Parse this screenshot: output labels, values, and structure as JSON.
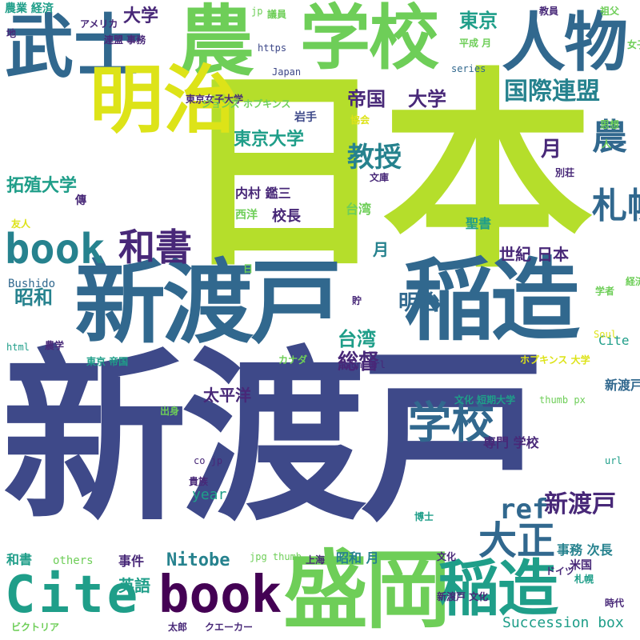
{
  "palette": {
    "lime": "#b5de2b",
    "green": "#6ece58",
    "teal": "#1f9e89",
    "cyan": "#26828e",
    "blue": "#31688e",
    "indigo": "#3e4989",
    "violet": "#482878",
    "dark": "#440154",
    "yellow": "#dde318"
  },
  "words": [
    {
      "text": "新渡戸",
      "color": "indigo"
    },
    {
      "text": "日本",
      "color": "lime"
    },
    {
      "text": "新渡戸",
      "color": "blue"
    },
    {
      "text": "稲造",
      "color": "blue"
    },
    {
      "text": "学校",
      "color": "green"
    },
    {
      "text": "農",
      "color": "green"
    },
    {
      "text": "人物",
      "color": "blue"
    },
    {
      "text": "武士",
      "color": "blue"
    },
    {
      "text": "明治",
      "color": "yellow"
    },
    {
      "text": "盛岡",
      "color": "green"
    },
    {
      "text": "稲造",
      "color": "teal"
    },
    {
      "text": "book",
      "color": "cyan"
    },
    {
      "text": "Cite",
      "color": "teal"
    },
    {
      "text": "book",
      "color": "dark"
    },
    {
      "text": "和書",
      "color": "violet"
    },
    {
      "text": "学校",
      "color": "blue"
    },
    {
      "text": "札幌",
      "color": "blue"
    },
    {
      "text": "農",
      "color": "blue"
    },
    {
      "text": "大正",
      "color": "blue"
    },
    {
      "text": "新渡戸",
      "color": "violet"
    },
    {
      "text": "ref",
      "color": "blue"
    },
    {
      "text": "東京",
      "color": "teal"
    },
    {
      "text": "国際",
      "color": "cyan"
    },
    {
      "text": "連盟",
      "color": "cyan"
    },
    {
      "text": "帝国",
      "color": "violet"
    },
    {
      "text": "大学",
      "color": "violet"
    },
    {
      "text": "大学",
      "color": "violet"
    },
    {
      "text": "教授",
      "color": "cyan"
    },
    {
      "text": "月",
      "color": "violet"
    },
    {
      "text": "拓殖大学",
      "color": "teal"
    },
    {
      "text": "東京大学",
      "color": "teal"
    },
    {
      "text": "岩手",
      "color": "indigo"
    },
    {
      "text": "内村 鑑三",
      "color": "violet"
    },
    {
      "text": "西洋",
      "color": "green"
    },
    {
      "text": "校長",
      "color": "violet"
    },
    {
      "text": "台湾",
      "color": "green"
    },
    {
      "text": "台湾",
      "color": "teal"
    },
    {
      "text": "総督",
      "color": "violet"
    },
    {
      "text": "明治",
      "color": "blue"
    },
    {
      "text": "昭和",
      "color": "cyan"
    },
    {
      "text": "世紀 日本",
      "color": "violet"
    },
    {
      "text": "月",
      "color": "cyan"
    },
    {
      "text": "聖書",
      "color": "teal"
    },
    {
      "text": "Nitobe",
      "color": "cyan"
    },
    {
      "text": "事件",
      "color": "violet"
    },
    {
      "text": "英語",
      "color": "teal"
    },
    {
      "text": "Succession box",
      "color": "teal"
    },
    {
      "text": "year",
      "color": "teal"
    },
    {
      "text": "太平洋",
      "color": "violet"
    },
    {
      "text": "専門 学校",
      "color": "violet"
    },
    {
      "text": "新渡戸 ref",
      "color": "blue"
    },
    {
      "text": "Cite",
      "color": "teal"
    },
    {
      "text": "事務 次長",
      "color": "cyan"
    },
    {
      "text": "昭和 月",
      "color": "cyan"
    },
    {
      "text": "和書",
      "color": "teal"
    },
    {
      "text": "others",
      "color": "green"
    },
    {
      "text": "Bushido",
      "color": "blue"
    },
    {
      "text": "農業 経済",
      "color": "teal"
    },
    {
      "text": "アメリカ",
      "color": "violet"
    },
    {
      "text": "連盟 事務",
      "color": "violet"
    },
    {
      "text": "https",
      "color": "indigo"
    },
    {
      "text": "Japan",
      "color": "indigo"
    },
    {
      "text": "jp",
      "color": "green"
    },
    {
      "text": "議員",
      "color": "green"
    },
    {
      "text": "教員",
      "color": "violet"
    },
    {
      "text": "祖父",
      "color": "green"
    },
    {
      "text": "平成 月",
      "color": "green"
    },
    {
      "text": "series",
      "color": "blue"
    },
    {
      "text": "地",
      "color": "violet"
    },
    {
      "text": "東京女子大学",
      "color": "violet"
    },
    {
      "text": "ジョンズ ホプキンス",
      "color": "green"
    },
    {
      "text": "文庫",
      "color": "violet"
    },
    {
      "text": "別荘",
      "color": "violet"
    },
    {
      "text": "思想",
      "color": "green"
    },
    {
      "text": "人",
      "color": "green"
    },
    {
      "text": "協会",
      "color": "yellow"
    },
    {
      "text": "女子 経済",
      "color": "green"
    },
    {
      "text": "友人",
      "color": "yellow"
    },
    {
      "text": "傳",
      "color": "violet"
    },
    {
      "text": "学者",
      "color": "green"
    },
    {
      "text": "経済 専門",
      "color": "green"
    },
    {
      "text": "Soul",
      "color": "yellow"
    },
    {
      "text": "html",
      "color": "teal"
    },
    {
      "text": "農学",
      "color": "violet"
    },
    {
      "text": "東京 帝国",
      "color": "teal"
    },
    {
      "text": "カナダ",
      "color": "green"
    },
    {
      "text": "isbn url",
      "color": "violet"
    },
    {
      "text": "ホプキンス 大学",
      "color": "yellow"
    },
    {
      "text": "文化 短期大学",
      "color": "teal"
    },
    {
      "text": "thumb px",
      "color": "green"
    },
    {
      "text": "出身",
      "color": "green"
    },
    {
      "text": "co jp",
      "color": "violet"
    },
    {
      "text": "url",
      "color": "teal"
    },
    {
      "text": "貴族",
      "color": "violet"
    },
    {
      "text": "博士",
      "color": "teal"
    },
    {
      "text": "jpg thumb",
      "color": "green"
    },
    {
      "text": "上海",
      "color": "violet"
    },
    {
      "text": "ドイツ",
      "color": "violet"
    },
    {
      "text": "米国",
      "color": "violet"
    },
    {
      "text": "文化",
      "color": "violet"
    },
    {
      "text": "新渡戸 文化",
      "color": "violet"
    },
    {
      "text": "札幌",
      "color": "teal"
    },
    {
      "text": "時代",
      "color": "violet"
    },
    {
      "text": "ビクトリア",
      "color": "green"
    },
    {
      "text": "太郎",
      "color": "violet"
    },
    {
      "text": "クエーカー",
      "color": "violet"
    },
    {
      "text": "日",
      "color": "green"
    },
    {
      "text": "貯",
      "color": "violet"
    }
  ]
}
